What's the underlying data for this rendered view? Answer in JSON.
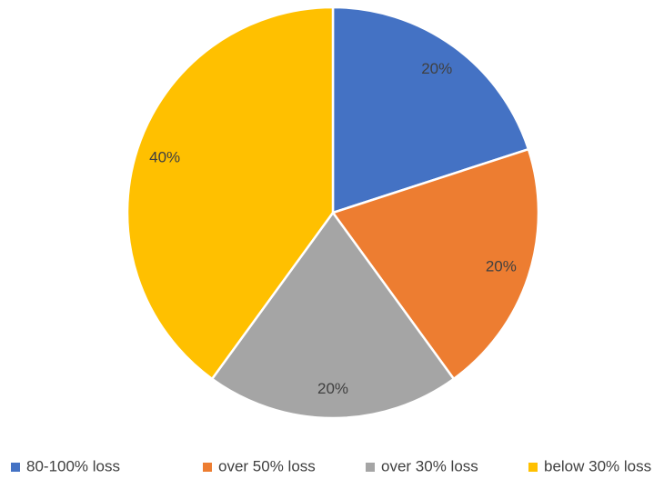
{
  "chart_data": {
    "type": "pie",
    "categories": [
      "80-100% loss",
      "over 50% loss",
      "over 30% loss",
      "below 30% loss"
    ],
    "values": [
      20,
      20,
      20,
      40
    ],
    "value_labels": [
      "20%",
      "20%",
      "20%",
      "40%"
    ],
    "colors": [
      "#4472c4",
      "#ed7d31",
      "#a5a5a5",
      "#ffc000"
    ],
    "legend": "bottom"
  }
}
